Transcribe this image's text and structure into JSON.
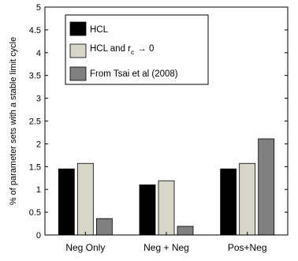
{
  "chart_data": {
    "type": "bar",
    "ylabel": "% of parameter sets with a stable limit cycle",
    "ylim": [
      0,
      5
    ],
    "yticks": [
      0,
      0.5,
      1,
      1.5,
      2,
      2.5,
      3,
      3.5,
      4,
      4.5,
      5
    ],
    "ytick_labels": [
      "0",
      "0.5",
      "1",
      "1.5",
      "2",
      "2.5",
      "3",
      "3.5",
      "4",
      "4.5",
      "5"
    ],
    "categories": [
      "Neg Only",
      "Neg + Neg",
      "Pos+Neg"
    ],
    "grid": false,
    "legend_position": "top-left",
    "series": [
      {
        "name": "HCL",
        "color": "#000000",
        "values": [
          1.45,
          1.1,
          1.45
        ]
      },
      {
        "name": "HCL and r_c → 0",
        "color": "#d7d6c8",
        "values": [
          1.57,
          1.19,
          1.57
        ]
      },
      {
        "name": "From Tsai et al (2008)",
        "color": "#808080",
        "values": [
          0.36,
          0.19,
          2.11
        ]
      }
    ],
    "legend_labels": {
      "hcl": "HCL",
      "hcl_rc_prefix": "HCL and r",
      "hcl_rc_sub": "c",
      "hcl_rc_suffix": "→ 0",
      "tsai": "From Tsai et al (2008)"
    }
  }
}
